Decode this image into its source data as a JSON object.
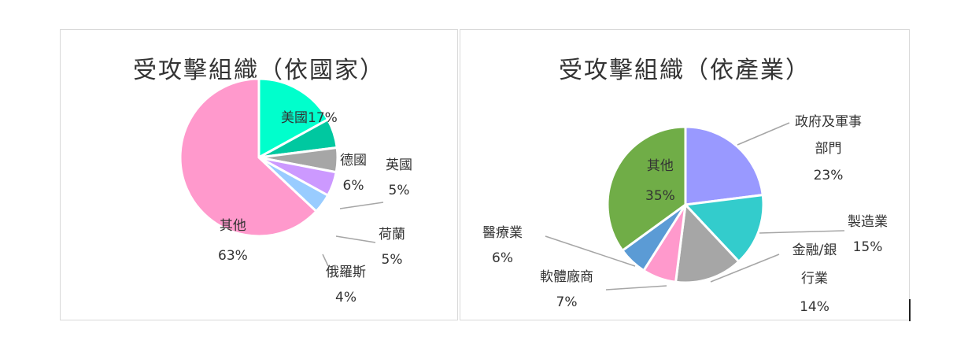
{
  "chart_data": [
    {
      "type": "pie",
      "title": "受攻擊組織（依國家）",
      "slices": [
        {
          "label": "美國",
          "value": 17,
          "display": "17%",
          "color": "#00ffcc"
        },
        {
          "label": "德國",
          "value": 6,
          "display": "6%",
          "color": "#00c8a0"
        },
        {
          "label": "英國",
          "value": 5,
          "display": "5%",
          "color": "#a6a6a6"
        },
        {
          "label": "荷蘭",
          "value": 5,
          "display": "5%",
          "color": "#cc99ff"
        },
        {
          "label": "俄羅斯",
          "value": 4,
          "display": "4%",
          "color": "#99ccff"
        },
        {
          "label": "其他",
          "value": 63,
          "display": "63%",
          "color": "#ff99cc"
        }
      ]
    },
    {
      "type": "pie",
      "title": "受攻擊組織（依產業）",
      "slices": [
        {
          "label": "政府及軍事部門",
          "value": 23,
          "display": "23%",
          "color": "#9999ff"
        },
        {
          "label": "製造業",
          "value": 15,
          "display": "15%",
          "color": "#33cccc"
        },
        {
          "label": "金融/銀行業",
          "value": 14,
          "display": "14%",
          "color": "#a6a6a6"
        },
        {
          "label": "軟體廠商",
          "value": 7,
          "display": "7%",
          "color": "#ff99cc"
        },
        {
          "label": "醫療業",
          "value": 6,
          "display": "6%",
          "color": "#5b9bd5"
        },
        {
          "label": "其他",
          "value": 35,
          "display": "35%",
          "color": "#70ad47"
        }
      ]
    }
  ]
}
